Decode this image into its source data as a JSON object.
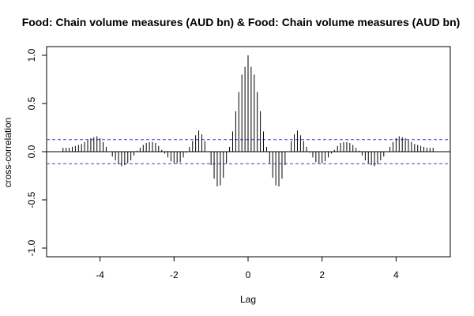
{
  "chart_data": {
    "type": "bar",
    "title": "Food: Chain volume measures (AUD bn) & Food: Chain volume measures (AUD bn)",
    "xlabel": "Lag",
    "ylabel": "cross-correlation",
    "xlim": [
      -5,
      5
    ],
    "ylim": [
      -1,
      1
    ],
    "x_ticks": [
      -4,
      -2,
      0,
      2,
      4
    ],
    "x_tick_labels": [
      "-4",
      "-2",
      "0",
      "2",
      "4"
    ],
    "y_ticks": [
      -1.0,
      -0.5,
      0.0,
      0.5,
      1.0
    ],
    "y_tick_labels": [
      "-1.0",
      "-0.5",
      "0.0",
      "0.5",
      "1.0"
    ],
    "confidence_limits": [
      0.125,
      -0.125
    ],
    "lag_step": 0.0833,
    "x": [
      0,
      0.083,
      0.167,
      0.25,
      0.333,
      0.417,
      0.5,
      0.583,
      0.667,
      0.75,
      0.833,
      0.917,
      1.0,
      1.083,
      1.167,
      1.25,
      1.333,
      1.417,
      1.5,
      1.583,
      1.667,
      1.75,
      1.833,
      1.917,
      2.0,
      2.083,
      2.167,
      2.25,
      2.333,
      2.417,
      2.5,
      2.583,
      2.667,
      2.75,
      2.833,
      2.917,
      3.0,
      3.083,
      3.167,
      3.25,
      3.333,
      3.417,
      3.5,
      3.583,
      3.667,
      3.75,
      3.833,
      3.917,
      4.0,
      4.083,
      4.167,
      4.25,
      4.333,
      4.417,
      4.5,
      4.583,
      4.667,
      4.75,
      4.833,
      4.917,
      5.0
    ],
    "values": [
      1.0,
      0.88,
      0.8,
      0.62,
      0.42,
      0.21,
      0.05,
      -0.12,
      -0.27,
      -0.35,
      -0.36,
      -0.28,
      -0.14,
      0.0,
      0.11,
      0.18,
      0.22,
      0.17,
      0.11,
      0.05,
      -0.01,
      -0.06,
      -0.11,
      -0.12,
      -0.12,
      -0.1,
      -0.06,
      -0.02,
      0.02,
      0.06,
      0.09,
      0.1,
      0.1,
      0.09,
      0.07,
      0.04,
      0.01,
      -0.04,
      -0.09,
      -0.12,
      -0.14,
      -0.15,
      -0.13,
      -0.09,
      -0.05,
      0.0,
      0.05,
      0.1,
      0.14,
      0.16,
      0.15,
      0.14,
      0.12,
      0.1,
      0.08,
      0.07,
      0.06,
      0.05,
      0.04,
      0.04,
      0.04
    ]
  }
}
